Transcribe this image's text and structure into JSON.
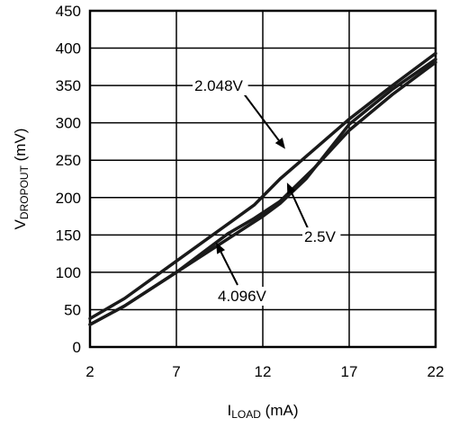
{
  "chart_data": {
    "type": "line",
    "title": "",
    "xlabel": {
      "main": "I",
      "sub": "LOAD",
      "unit": " (mA)"
    },
    "ylabel": {
      "main": "V",
      "sub": "DROPOUT",
      "unit": " (mV)"
    },
    "xlim": [
      2,
      22
    ],
    "ylim": [
      0,
      450
    ],
    "xticks": [
      2,
      7,
      12,
      17,
      22
    ],
    "yticks": [
      0,
      50,
      100,
      150,
      200,
      250,
      300,
      350,
      400,
      450
    ],
    "grid": true,
    "series": [
      {
        "name": "2.048V",
        "x": [
          2,
          4,
          7,
          10,
          11.5,
          13,
          15,
          17,
          19.5,
          22
        ],
        "y": [
          38,
          65,
          115,
          165,
          190,
          225,
          265,
          305,
          350,
          393
        ]
      },
      {
        "name": "2.5V",
        "x": [
          2,
          4,
          7,
          10,
          12,
          13,
          14.5,
          17,
          19.5,
          22
        ],
        "y": [
          30,
          55,
          100,
          145,
          175,
          192,
          225,
          298,
          345,
          385
        ]
      },
      {
        "name": "4.096V",
        "x": [
          2,
          4,
          7,
          10,
          11.5,
          13,
          15,
          17,
          19.5,
          22
        ],
        "y": [
          30,
          55,
          100,
          152,
          172,
          195,
          240,
          290,
          338,
          381
        ]
      }
    ],
    "annotations": [
      {
        "text": "2.048V",
        "series": "2.048V",
        "x": 13.3,
        "y": 265
      },
      {
        "text": "2.5V",
        "series": "2.5V",
        "x": 13.4,
        "y": 220
      },
      {
        "text": "4.096V",
        "series": "4.096V",
        "x": 9.3,
        "y": 140
      }
    ]
  }
}
